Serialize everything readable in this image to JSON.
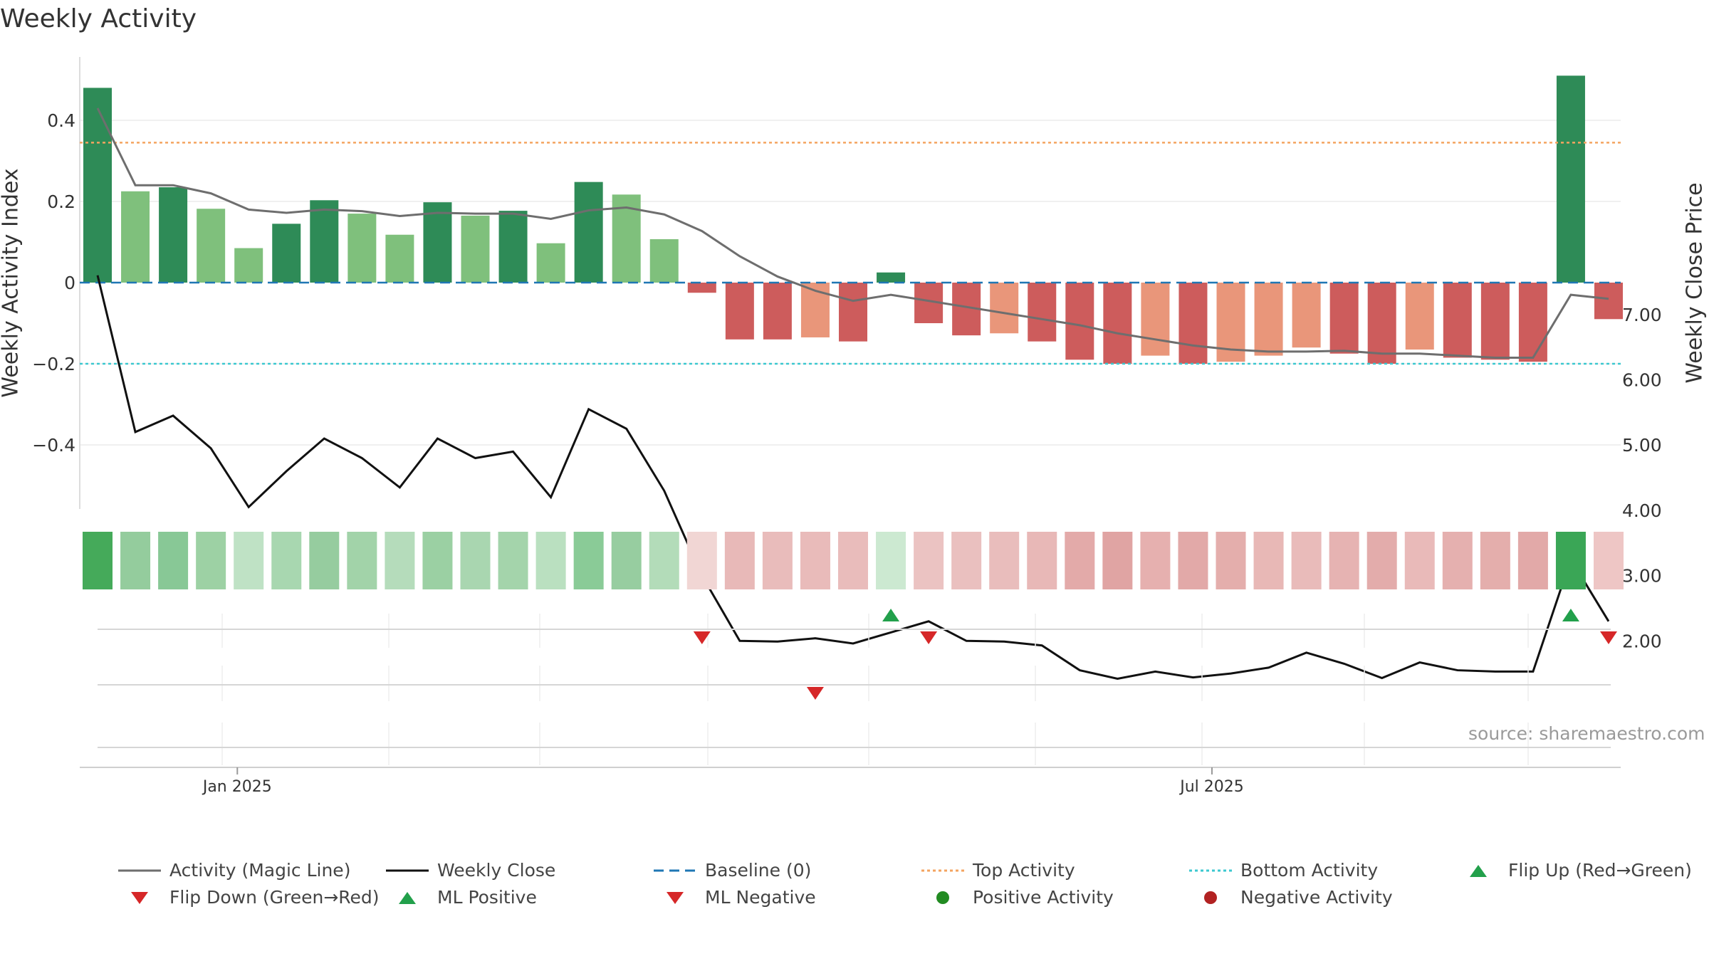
{
  "title": "Weekly Activity",
  "source": "source: sharemaestro.com",
  "colors": {
    "dark_green": "#2e8b57",
    "light_green": "#7fc07c",
    "dark_red": "#cd5c5c",
    "light_red": "#e9967a",
    "magic_line": "#6e6e6e",
    "close_line": "#111111",
    "baseline": "#1f77b4",
    "top_line": "#f4a460",
    "bottom_line": "#3cc8d0",
    "flip_up": "#22a04b",
    "flip_down": "#d62728"
  },
  "chart_data": {
    "type": "bar",
    "ylabel_left": "Weekly Activity Index",
    "ylabel_right": "Weekly Close Price",
    "left_ticks": [
      0.4,
      0.2,
      0,
      -0.2,
      -0.4
    ],
    "left_tick_labels": [
      "0.4",
      "0.2",
      "0",
      "−0.2",
      "−0.4"
    ],
    "right_ticks": [
      7,
      6,
      5,
      4,
      3,
      2
    ],
    "right_tick_labels": [
      "7.00",
      "6.00",
      "5.00",
      "4.00",
      "3.00",
      "2.00"
    ],
    "x_tick_labels": [
      "Jan 2025",
      "Jul 2025"
    ],
    "x_tick_index": [
      3.7,
      29.5
    ],
    "top_activity": 0.345,
    "bottom_activity": -0.2,
    "activity": [
      0.48,
      0.225,
      0.235,
      0.182,
      0.085,
      0.145,
      0.203,
      0.17,
      0.118,
      0.198,
      0.165,
      0.177,
      0.097,
      0.248,
      0.217,
      0.107,
      -0.025,
      -0.14,
      -0.14,
      -0.135,
      -0.145,
      0.025,
      -0.1,
      -0.13,
      -0.125,
      -0.145,
      -0.19,
      -0.2,
      -0.18,
      -0.2,
      -0.195,
      -0.18,
      -0.16,
      -0.175,
      -0.2,
      -0.165,
      -0.185,
      -0.19,
      -0.195,
      0.51,
      -0.09
    ],
    "strong": [
      true,
      false,
      true,
      false,
      false,
      true,
      true,
      false,
      false,
      true,
      false,
      true,
      false,
      true,
      false,
      false,
      true,
      true,
      true,
      false,
      true,
      true,
      true,
      true,
      false,
      true,
      true,
      true,
      false,
      true,
      false,
      false,
      false,
      true,
      true,
      false,
      true,
      true,
      true,
      true,
      true
    ],
    "magic_line": [
      0.43,
      0.24,
      0.24,
      0.22,
      0.18,
      0.172,
      0.18,
      0.176,
      0.164,
      0.172,
      0.17,
      0.17,
      0.157,
      0.178,
      0.185,
      0.168,
      0.127,
      0.065,
      0.015,
      -0.02,
      -0.045,
      -0.03,
      -0.045,
      -0.06,
      -0.075,
      -0.09,
      -0.105,
      -0.125,
      -0.14,
      -0.155,
      -0.165,
      -0.17,
      -0.17,
      -0.168,
      -0.175,
      -0.175,
      -0.18,
      -0.185,
      -0.185,
      -0.03,
      -0.04
    ],
    "weekly_close": [
      7.6,
      5.2,
      5.45,
      4.95,
      4.05,
      4.6,
      5.1,
      4.8,
      4.35,
      5.1,
      4.8,
      4.9,
      4.2,
      5.55,
      5.25,
      4.3,
      3.0,
      2.0,
      1.99,
      2.04,
      1.96,
      2.13,
      2.3,
      2.0,
      1.99,
      1.93,
      1.55,
      1.42,
      1.53,
      1.44,
      1.5,
      1.59,
      1.82,
      1.65,
      1.43,
      1.67,
      1.55,
      1.53,
      1.53,
      3.25,
      2.3
    ],
    "strip_colors": [
      "#45aa5a",
      "#94cc9d",
      "#88c896",
      "#9dd1a4",
      "#bfe2c5",
      "#a8d7b0",
      "#96cc9f",
      "#a2d3a9",
      "#b5dcbb",
      "#9bd0a3",
      "#a9d6b0",
      "#a4d4ab",
      "#bae0c0",
      "#8acb97",
      "#97cda0",
      "#b3dcb9",
      "#f1d6d4",
      "#e8b9b8",
      "#e9bcbb",
      "#e9bbba",
      "#e9bcbb",
      "#cce9d1",
      "#ebc3c2",
      "#eac0bf",
      "#e9bdbc",
      "#e8b8b7",
      "#e3aaa9",
      "#e0a4a3",
      "#e6b0af",
      "#e2a9a8",
      "#e4aeac",
      "#e8b8b6",
      "#e9bbba",
      "#e6b3b2",
      "#e3acab",
      "#e9bab9",
      "#e5b0af",
      "#e4aeac",
      "#e2a9a8",
      "#3aa656",
      "#eec6c5"
    ],
    "flip_up_index": [
      21,
      39
    ],
    "flip_down_index": [
      16,
      22,
      40
    ],
    "ml_negative_index": [
      19
    ],
    "legend": [
      "Activity (Magic Line)",
      "Weekly Close",
      "Baseline (0)",
      "Top Activity",
      "Bottom Activity",
      "Flip Up (Red→Green)",
      "Flip Down (Green→Red)",
      "ML Positive",
      "ML Negative",
      "Positive Activity",
      "Negative Activity"
    ]
  }
}
